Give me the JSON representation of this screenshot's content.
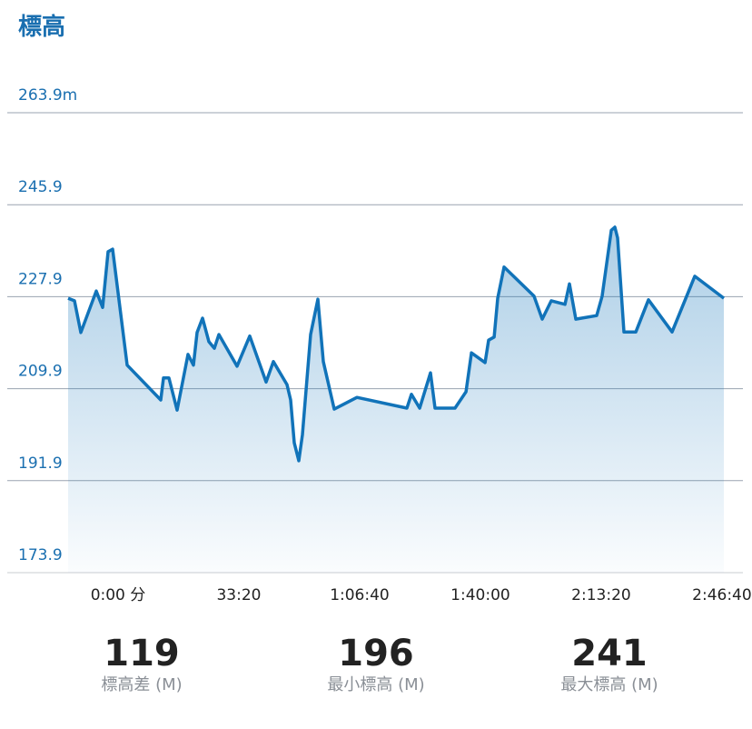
{
  "chart_data": {
    "type": "area",
    "title": "標高",
    "color": "#1173b9",
    "grid": true,
    "x": [
      -827,
      -722,
      -617,
      -361,
      -256,
      -165,
      -90,
      150,
      707,
      752,
      842,
      978,
      1158,
      1248,
      1309,
      1399,
      1504,
      1594,
      1669,
      1970,
      2181,
      2451,
      2572,
      2797,
      2858,
      2918,
      2993,
      3053,
      3188,
      3309,
      3399,
      3580,
      3956,
      4783,
      4858,
      4994,
      5174,
      5249,
      5580,
      5761,
      5851,
      6077,
      6136,
      6227,
      6287,
      6392,
      6888,
      7023,
      7174,
      7400,
      7475,
      7580,
      7926,
      8016,
      8167,
      8227,
      8272,
      8377,
      8573,
      8783,
      9174,
      9550,
      10031
    ],
    "values": [
      227.6,
      227.1,
      220.9,
      229.0,
      225.8,
      236.7,
      237.2,
      214.5,
      207.7,
      212.0,
      212.0,
      205.7,
      216.6,
      214.5,
      220.9,
      223.7,
      219.1,
      217.8,
      220.5,
      214.3,
      220.2,
      211.2,
      215.2,
      210.7,
      207.7,
      199.3,
      195.8,
      200.9,
      220.5,
      227.4,
      215.2,
      205.9,
      208.2,
      206.1,
      208.8,
      206.1,
      213.0,
      206.1,
      206.1,
      209.3,
      216.9,
      215.0,
      219.4,
      220.0,
      227.6,
      233.7,
      228.0,
      223.5,
      227.1,
      226.4,
      230.4,
      223.5,
      224.2,
      228.0,
      240.9,
      241.5,
      239.4,
      221.0,
      221.0,
      227.3,
      221.0,
      231.9,
      227.6
    ],
    "xlim": [
      -827,
      10031
    ],
    "xticks": [
      {
        "value": 0,
        "label": "0:00 分"
      },
      {
        "value": 2000,
        "label": "33:20"
      },
      {
        "value": 4000,
        "label": "1:06:40"
      },
      {
        "value": 6000,
        "label": "1:40:00"
      },
      {
        "value": 8000,
        "label": "2:13:20"
      },
      {
        "value": 10000,
        "label": "2:46:40"
      }
    ],
    "ylim": [
      173.9,
      263.9
    ],
    "yticks": [
      173.9,
      191.9,
      209.9,
      227.9,
      245.9,
      {
        "value": 263.9,
        "label": "263.9m"
      }
    ]
  },
  "stats": [
    {
      "value": "119",
      "label": "標高差 (M)"
    },
    {
      "value": "196",
      "label": "最小標高 (M)"
    },
    {
      "value": "241",
      "label": "最大標高 (M)"
    }
  ]
}
